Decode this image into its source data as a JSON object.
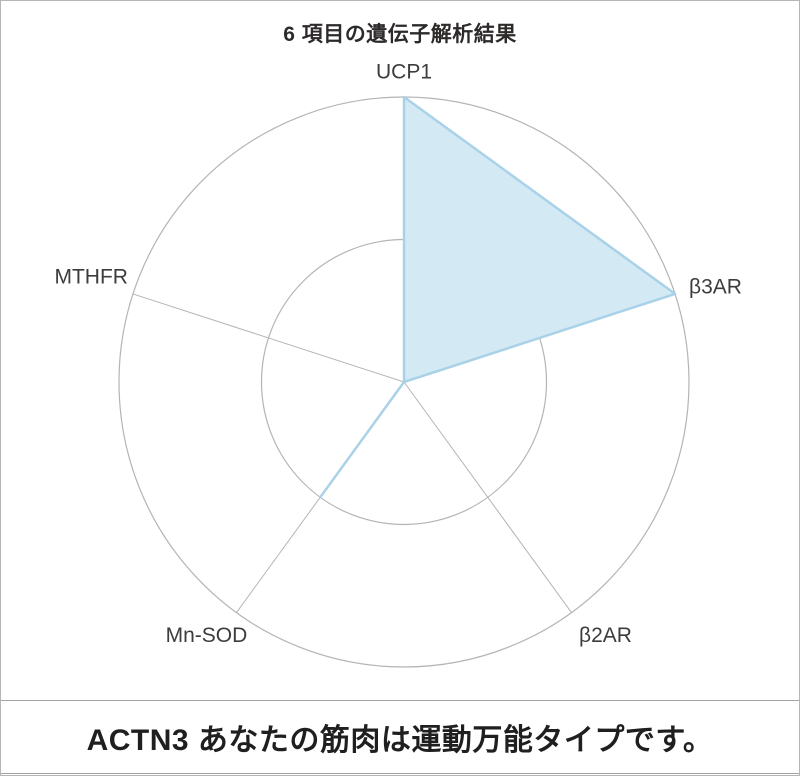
{
  "frame": {
    "border_color": "#b5b5b5",
    "background": "#ffffff"
  },
  "chart_data": {
    "type": "radar",
    "title": "6 項目の遺伝子解析結果",
    "categories": [
      "UCP1",
      "β3AR",
      "β2AR",
      "Mn-SOD",
      "MTHFR"
    ],
    "values": [
      2,
      2,
      0,
      1,
      0
    ],
    "max": 2,
    "rings": 2,
    "start_axis": "top",
    "direction": "clockwise",
    "grid": "on",
    "grid_color": "#b4b4b4",
    "fill_color": "#d3eaf5",
    "stroke_color": "#a9d1e8",
    "label_color": "#3c3c3c"
  },
  "banner": {
    "text": "ACTN3 あなたの筋肉は運動万能タイプです。",
    "text_color": "#1f1f1f",
    "border_color": "#a3a3a3"
  }
}
